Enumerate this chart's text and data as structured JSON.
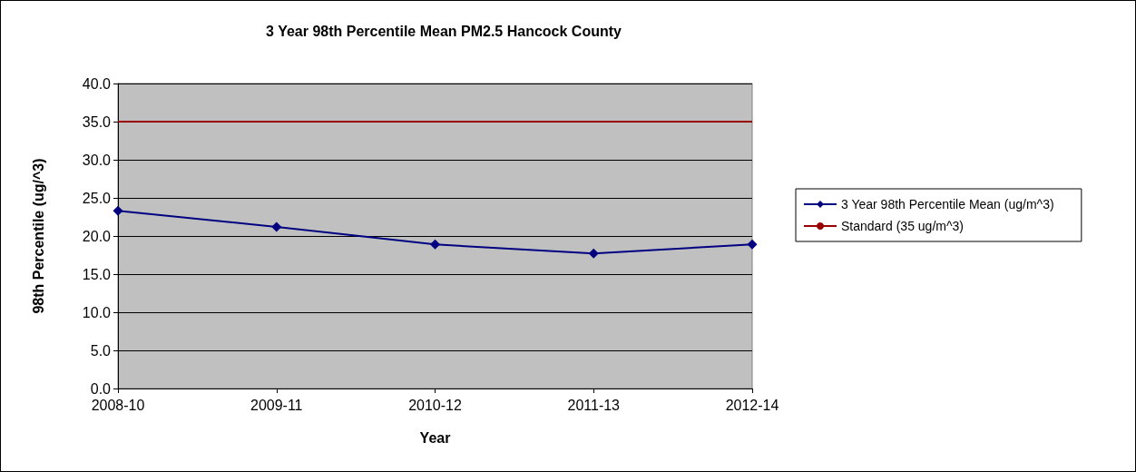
{
  "chart_data": {
    "type": "line",
    "title": "3 Year 98th Percentile Mean PM2.5 Hancock County",
    "xlabel": "Year",
    "ylabel": "98th Percentile (ug/^3)",
    "categories": [
      "2008-10",
      "2009-11",
      "2010-12",
      "2011-13",
      "2012-14"
    ],
    "series": [
      {
        "name": "3 Year 98th Percentile Mean (ug/m^3)",
        "color": "#000080",
        "marker": "diamond",
        "values": [
          23.3,
          21.2,
          18.9,
          17.7,
          18.9
        ]
      },
      {
        "name": "Standard (35 ug/m^3)",
        "color": "#990000",
        "marker": "none",
        "values": [
          35,
          35,
          35,
          35,
          35
        ]
      }
    ],
    "ylim": [
      0,
      40
    ],
    "yticks": [
      {
        "value": 0,
        "label": "0.0"
      },
      {
        "value": 5,
        "label": "5.0"
      },
      {
        "value": 10,
        "label": "10.0"
      },
      {
        "value": 15,
        "label": "15.0"
      },
      {
        "value": 20,
        "label": "20.0"
      },
      {
        "value": 25,
        "label": "25.0"
      },
      {
        "value": 30,
        "label": "30.0"
      },
      {
        "value": 35,
        "label": "35.0"
      },
      {
        "value": 40,
        "label": "40.0"
      }
    ],
    "grid": "y",
    "legend": "right"
  }
}
